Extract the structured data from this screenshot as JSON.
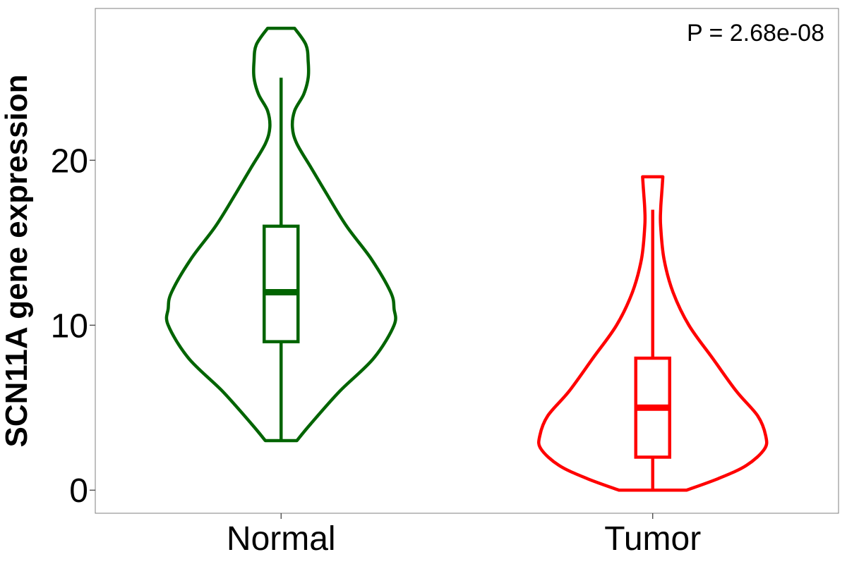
{
  "chart_data": {
    "type": "violin",
    "title": "",
    "xlabel": "",
    "ylabel": "SCN11A gene expression",
    "annotation": "P = 2.68e-08",
    "categories": [
      "Normal",
      "Tumor"
    ],
    "yticks": [
      0,
      10,
      20
    ],
    "ylim": [
      -1.4,
      29.2
    ],
    "grid": false,
    "legend": "none",
    "groups": [
      {
        "name": "Normal",
        "color": "#006400",
        "violin": {
          "min": 3,
          "max": 28,
          "halfwidth_profile": [
            [
              3,
              0.14
            ],
            [
              4,
              0.26
            ],
            [
              6,
              0.52
            ],
            [
              8,
              0.82
            ],
            [
              10,
              1.0
            ],
            [
              11,
              1.0
            ],
            [
              12,
              0.97
            ],
            [
              14,
              0.8
            ],
            [
              16,
              0.58
            ],
            [
              18,
              0.4
            ],
            [
              19.5,
              0.27
            ],
            [
              21,
              0.14
            ],
            [
              22,
              0.1
            ],
            [
              23,
              0.12
            ],
            [
              24,
              0.2
            ],
            [
              25,
              0.24
            ],
            [
              26,
              0.24
            ],
            [
              27,
              0.22
            ],
            [
              28,
              0.12
            ]
          ]
        },
        "box": {
          "q1": 9,
          "median": 12,
          "q3": 16,
          "whisker_low": 3,
          "whisker_high": 25
        }
      },
      {
        "name": "Tumor",
        "color": "#ff0000",
        "violin": {
          "min": 0,
          "max": 19,
          "halfwidth_profile": [
            [
              0,
              0.3
            ],
            [
              0.7,
              0.58
            ],
            [
              1.5,
              0.83
            ],
            [
              2.5,
              0.99
            ],
            [
              3.3,
              1.0
            ],
            [
              4.5,
              0.93
            ],
            [
              6,
              0.74
            ],
            [
              8,
              0.53
            ],
            [
              10,
              0.32
            ],
            [
              12,
              0.18
            ],
            [
              14,
              0.1
            ],
            [
              16,
              0.07
            ],
            [
              17,
              0.07
            ],
            [
              18,
              0.08
            ],
            [
              19,
              0.09
            ]
          ]
        },
        "box": {
          "q1": 2,
          "median": 5,
          "q3": 8,
          "whisker_low": 0,
          "whisker_high": 17
        }
      }
    ]
  }
}
